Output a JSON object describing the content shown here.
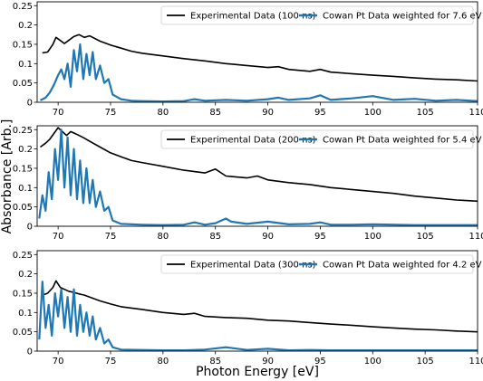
{
  "figure": {
    "ylabel": "Absorbance [Arb.]",
    "xlabel": "Photon Energy [eV]"
  },
  "colors": {
    "experimental": "#000000",
    "cowan": "#1f77b4"
  },
  "chart_data": [
    {
      "type": "line",
      "xlim": [
        68,
        110
      ],
      "ylim": [
        0,
        0.26
      ],
      "x_ticks": [
        70,
        75,
        80,
        85,
        90,
        95,
        100,
        105,
        110
      ],
      "y_ticks": [
        0,
        0.05,
        0.1,
        0.15,
        0.2,
        0.25
      ],
      "y_tick_labels": [
        "0",
        "0.05",
        "0.1",
        "0.15",
        "0.2",
        "0.25"
      ],
      "legend_position": "top-right",
      "series": [
        {
          "name": "Experimental Data (100 ns)",
          "x": [
            68.5,
            69,
            69.5,
            69.8,
            70.2,
            70.6,
            71,
            71.5,
            72,
            72.5,
            73,
            74,
            75,
            76,
            77,
            78,
            80,
            82,
            84,
            86,
            88,
            90,
            91,
            92,
            94,
            95,
            96,
            98,
            100,
            102,
            104,
            106,
            108,
            110
          ],
          "y": [
            0.128,
            0.13,
            0.15,
            0.168,
            0.16,
            0.152,
            0.16,
            0.17,
            0.175,
            0.168,
            0.172,
            0.158,
            0.148,
            0.14,
            0.132,
            0.127,
            0.12,
            0.113,
            0.107,
            0.1,
            0.095,
            0.09,
            0.092,
            0.085,
            0.08,
            0.085,
            0.078,
            0.074,
            0.07,
            0.067,
            0.063,
            0.06,
            0.058,
            0.055
          ]
        },
        {
          "name": "Cowan Pt Data weighted for 7.6 eV",
          "x": [
            68.3,
            68.8,
            69.2,
            69.6,
            70,
            70.3,
            70.6,
            70.9,
            71.2,
            71.5,
            71.8,
            72.1,
            72.4,
            72.7,
            73,
            73.3,
            73.6,
            74,
            74.4,
            74.8,
            75.2,
            76,
            77,
            78,
            80,
            82,
            83,
            84,
            86,
            88,
            90,
            91,
            92,
            94,
            95,
            96,
            98,
            100,
            102,
            104,
            106,
            108,
            110
          ],
          "y": [
            0.005,
            0.012,
            0.025,
            0.045,
            0.07,
            0.085,
            0.06,
            0.1,
            0.04,
            0.135,
            0.08,
            0.15,
            0.06,
            0.125,
            0.07,
            0.13,
            0.06,
            0.095,
            0.05,
            0.06,
            0.02,
            0.008,
            0.004,
            0.003,
            0.002,
            0.003,
            0.008,
            0.004,
            0.006,
            0.004,
            0.008,
            0.012,
            0.006,
            0.01,
            0.018,
            0.006,
            0.01,
            0.016,
            0.006,
            0.009,
            0.004,
            0.006,
            0.003
          ]
        }
      ]
    },
    {
      "type": "line",
      "xlim": [
        68,
        110
      ],
      "ylim": [
        0,
        0.26
      ],
      "x_ticks": [
        70,
        75,
        80,
        85,
        90,
        95,
        100,
        105,
        110
      ],
      "y_ticks": [
        0,
        0.05,
        0.1,
        0.15,
        0.2,
        0.25
      ],
      "y_tick_labels": [
        "0",
        "0.05",
        "0.1",
        "0.15",
        "0.2",
        "0.25"
      ],
      "legend_position": "top-right",
      "series": [
        {
          "name": "Experimental Data (200 ns)",
          "x": [
            68.3,
            68.8,
            69.2,
            69.6,
            70,
            70.4,
            70.8,
            71.2,
            71.6,
            72,
            72.5,
            73,
            74,
            75,
            76,
            77,
            78,
            80,
            82,
            84,
            85,
            86,
            88,
            89,
            90,
            92,
            94,
            96,
            98,
            100,
            102,
            104,
            106,
            108,
            110
          ],
          "y": [
            0.205,
            0.215,
            0.225,
            0.24,
            0.255,
            0.245,
            0.235,
            0.245,
            0.24,
            0.235,
            0.228,
            0.22,
            0.205,
            0.19,
            0.18,
            0.17,
            0.165,
            0.155,
            0.145,
            0.138,
            0.148,
            0.13,
            0.125,
            0.13,
            0.12,
            0.113,
            0.108,
            0.1,
            0.095,
            0.09,
            0.085,
            0.078,
            0.073,
            0.068,
            0.065
          ]
        },
        {
          "name": "Cowan Pt Data weighted for 5.4 eV",
          "x": [
            68.2,
            68.5,
            68.8,
            69.1,
            69.4,
            69.7,
            70,
            70.3,
            70.6,
            70.9,
            71.2,
            71.5,
            71.8,
            72.1,
            72.4,
            72.7,
            73,
            73.3,
            73.6,
            74,
            74.4,
            74.8,
            75.2,
            76,
            78,
            80,
            82,
            83,
            84,
            85,
            86,
            86.5,
            88,
            90,
            92,
            94,
            95,
            96,
            98,
            100,
            104,
            108,
            110
          ],
          "y": [
            0.02,
            0.08,
            0.04,
            0.14,
            0.07,
            0.2,
            0.12,
            0.25,
            0.1,
            0.23,
            0.08,
            0.2,
            0.07,
            0.17,
            0.06,
            0.15,
            0.06,
            0.12,
            0.05,
            0.09,
            0.04,
            0.05,
            0.015,
            0.006,
            0.004,
            0.003,
            0.004,
            0.01,
            0.004,
            0.008,
            0.02,
            0.012,
            0.006,
            0.012,
            0.005,
            0.006,
            0.01,
            0.004,
            0.004,
            0.005,
            0.003,
            0.003,
            0.003
          ]
        }
      ]
    },
    {
      "type": "line",
      "xlim": [
        68,
        110
      ],
      "ylim": [
        0,
        0.26
      ],
      "x_ticks": [
        70,
        75,
        80,
        85,
        90,
        95,
        100,
        105,
        110
      ],
      "y_ticks": [
        0,
        0.05,
        0.1,
        0.15,
        0.2,
        0.25
      ],
      "y_tick_labels": [
        "0",
        "0.05",
        "0.1",
        "0.15",
        "0.2",
        "0.25"
      ],
      "legend_position": "top-right",
      "series": [
        {
          "name": "Experimental Data (300 ns)",
          "x": [
            68.5,
            69,
            69.5,
            69.8,
            70.2,
            70.6,
            71,
            71.5,
            72,
            72.5,
            73,
            74,
            75,
            76,
            78,
            80,
            82,
            83,
            84,
            86,
            88,
            90,
            92,
            94,
            96,
            98,
            100,
            102,
            104,
            106,
            108,
            110
          ],
          "y": [
            0.145,
            0.15,
            0.165,
            0.182,
            0.165,
            0.16,
            0.155,
            0.152,
            0.148,
            0.145,
            0.14,
            0.13,
            0.122,
            0.115,
            0.108,
            0.1,
            0.095,
            0.098,
            0.09,
            0.087,
            0.085,
            0.08,
            0.078,
            0.074,
            0.07,
            0.067,
            0.063,
            0.06,
            0.057,
            0.055,
            0.052,
            0.05
          ]
        },
        {
          "name": "Cowan Pt Data weighted for 4.2 eV",
          "x": [
            68.2,
            68.5,
            68.8,
            69.1,
            69.4,
            69.7,
            70,
            70.3,
            70.6,
            70.9,
            71.2,
            71.5,
            71.8,
            72.1,
            72.4,
            72.7,
            73,
            73.3,
            73.6,
            74,
            74.4,
            74.8,
            75.2,
            76,
            78,
            80,
            82,
            84,
            86,
            88,
            90,
            92,
            94,
            96,
            98,
            100,
            104,
            108,
            110
          ],
          "y": [
            0.03,
            0.18,
            0.06,
            0.12,
            0.04,
            0.15,
            0.09,
            0.16,
            0.06,
            0.14,
            0.05,
            0.16,
            0.04,
            0.12,
            0.05,
            0.1,
            0.04,
            0.09,
            0.03,
            0.06,
            0.02,
            0.03,
            0.01,
            0.004,
            0.003,
            0.002,
            0.002,
            0.004,
            0.01,
            0.003,
            0.006,
            0.002,
            0.003,
            0.002,
            0.002,
            0.002,
            0.002,
            0.002,
            0.002
          ]
        }
      ]
    }
  ]
}
